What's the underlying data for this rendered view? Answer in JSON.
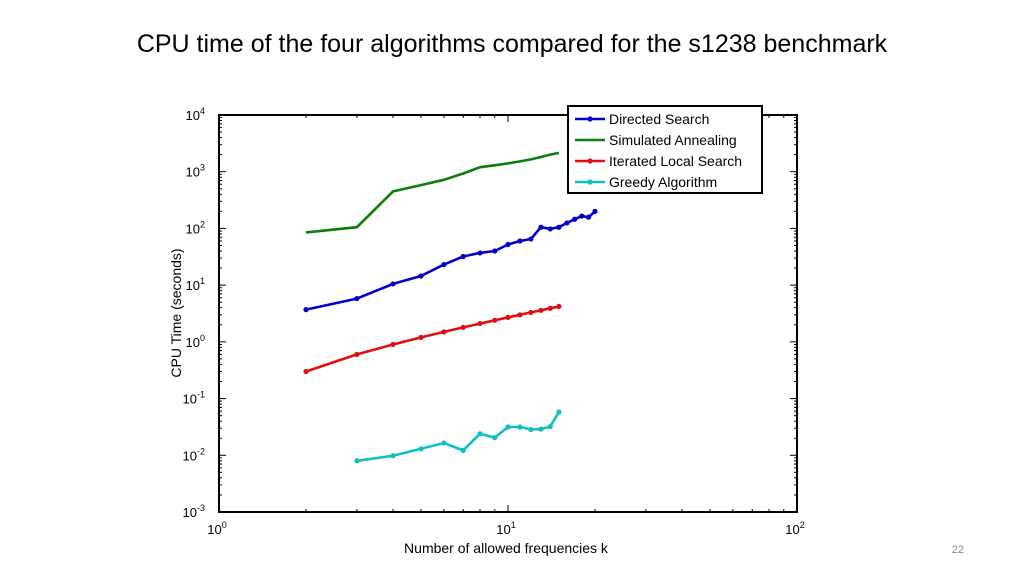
{
  "slide": {
    "title": "CPU time of the four algorithms compared for the s1238 benchmark",
    "page_number": "22"
  },
  "chart_data": {
    "type": "line",
    "xscale": "log",
    "yscale": "log",
    "xlabel": "Number of allowed frequencies k",
    "ylabel": "CPU Time (seconds)",
    "xlim": [
      1,
      100
    ],
    "ylim": [
      0.001,
      10000
    ],
    "xticks": [
      {
        "value": 1,
        "base": "10",
        "exp": "0"
      },
      {
        "value": 10,
        "base": "10",
        "exp": "1"
      },
      {
        "value": 100,
        "base": "10",
        "exp": "2"
      }
    ],
    "yticks": [
      {
        "value": 0.001,
        "base": "10",
        "exp": "-3"
      },
      {
        "value": 0.01,
        "base": "10",
        "exp": "-2"
      },
      {
        "value": 0.1,
        "base": "10",
        "exp": "-1"
      },
      {
        "value": 1,
        "base": "10",
        "exp": "0"
      },
      {
        "value": 10,
        "base": "10",
        "exp": "1"
      },
      {
        "value": 100,
        "base": "10",
        "exp": "2"
      },
      {
        "value": 1000,
        "base": "10",
        "exp": "3"
      },
      {
        "value": 10000,
        "base": "10",
        "exp": "4"
      }
    ],
    "legend_position": "top-right",
    "series": [
      {
        "name": "Directed Search",
        "color": "#0000cc",
        "marker": true,
        "x": [
          2,
          3,
          4,
          5,
          6,
          7,
          8,
          9,
          10,
          11,
          12,
          13,
          14,
          15,
          16,
          17,
          18,
          19,
          20
        ],
        "y": [
          3.7,
          5.8,
          10.5,
          14.5,
          23,
          32,
          37,
          40,
          52,
          60,
          65,
          105,
          98,
          105,
          125,
          145,
          165,
          158,
          200
        ]
      },
      {
        "name": "Simulated Annealing",
        "color": "#0a7d0a",
        "marker": false,
        "x": [
          2,
          3,
          4,
          5,
          6,
          7,
          8,
          9,
          10,
          11,
          12,
          13,
          14,
          15
        ],
        "y": [
          85,
          105,
          450,
          580,
          720,
          930,
          1200,
          1300,
          1400,
          1520,
          1650,
          1820,
          2000,
          2150
        ]
      },
      {
        "name": "Iterated Local Search",
        "color": "#e01010",
        "marker": true,
        "x": [
          2,
          3,
          4,
          5,
          6,
          7,
          8,
          9,
          10,
          11,
          12,
          13,
          14,
          15
        ],
        "y": [
          0.3,
          0.6,
          0.9,
          1.2,
          1.5,
          1.8,
          2.1,
          2.4,
          2.7,
          3.0,
          3.3,
          3.6,
          3.9,
          4.2
        ]
      },
      {
        "name": "Greedy Algorithm",
        "color": "#10c0c0",
        "marker": true,
        "x": [
          3,
          4,
          5,
          6,
          7,
          8,
          9,
          10,
          11,
          12,
          13,
          14,
          15
        ],
        "y": [
          0.008,
          0.0098,
          0.013,
          0.0165,
          0.0122,
          0.024,
          0.0205,
          0.0315,
          0.0315,
          0.0285,
          0.029,
          0.032,
          0.058
        ]
      }
    ]
  }
}
